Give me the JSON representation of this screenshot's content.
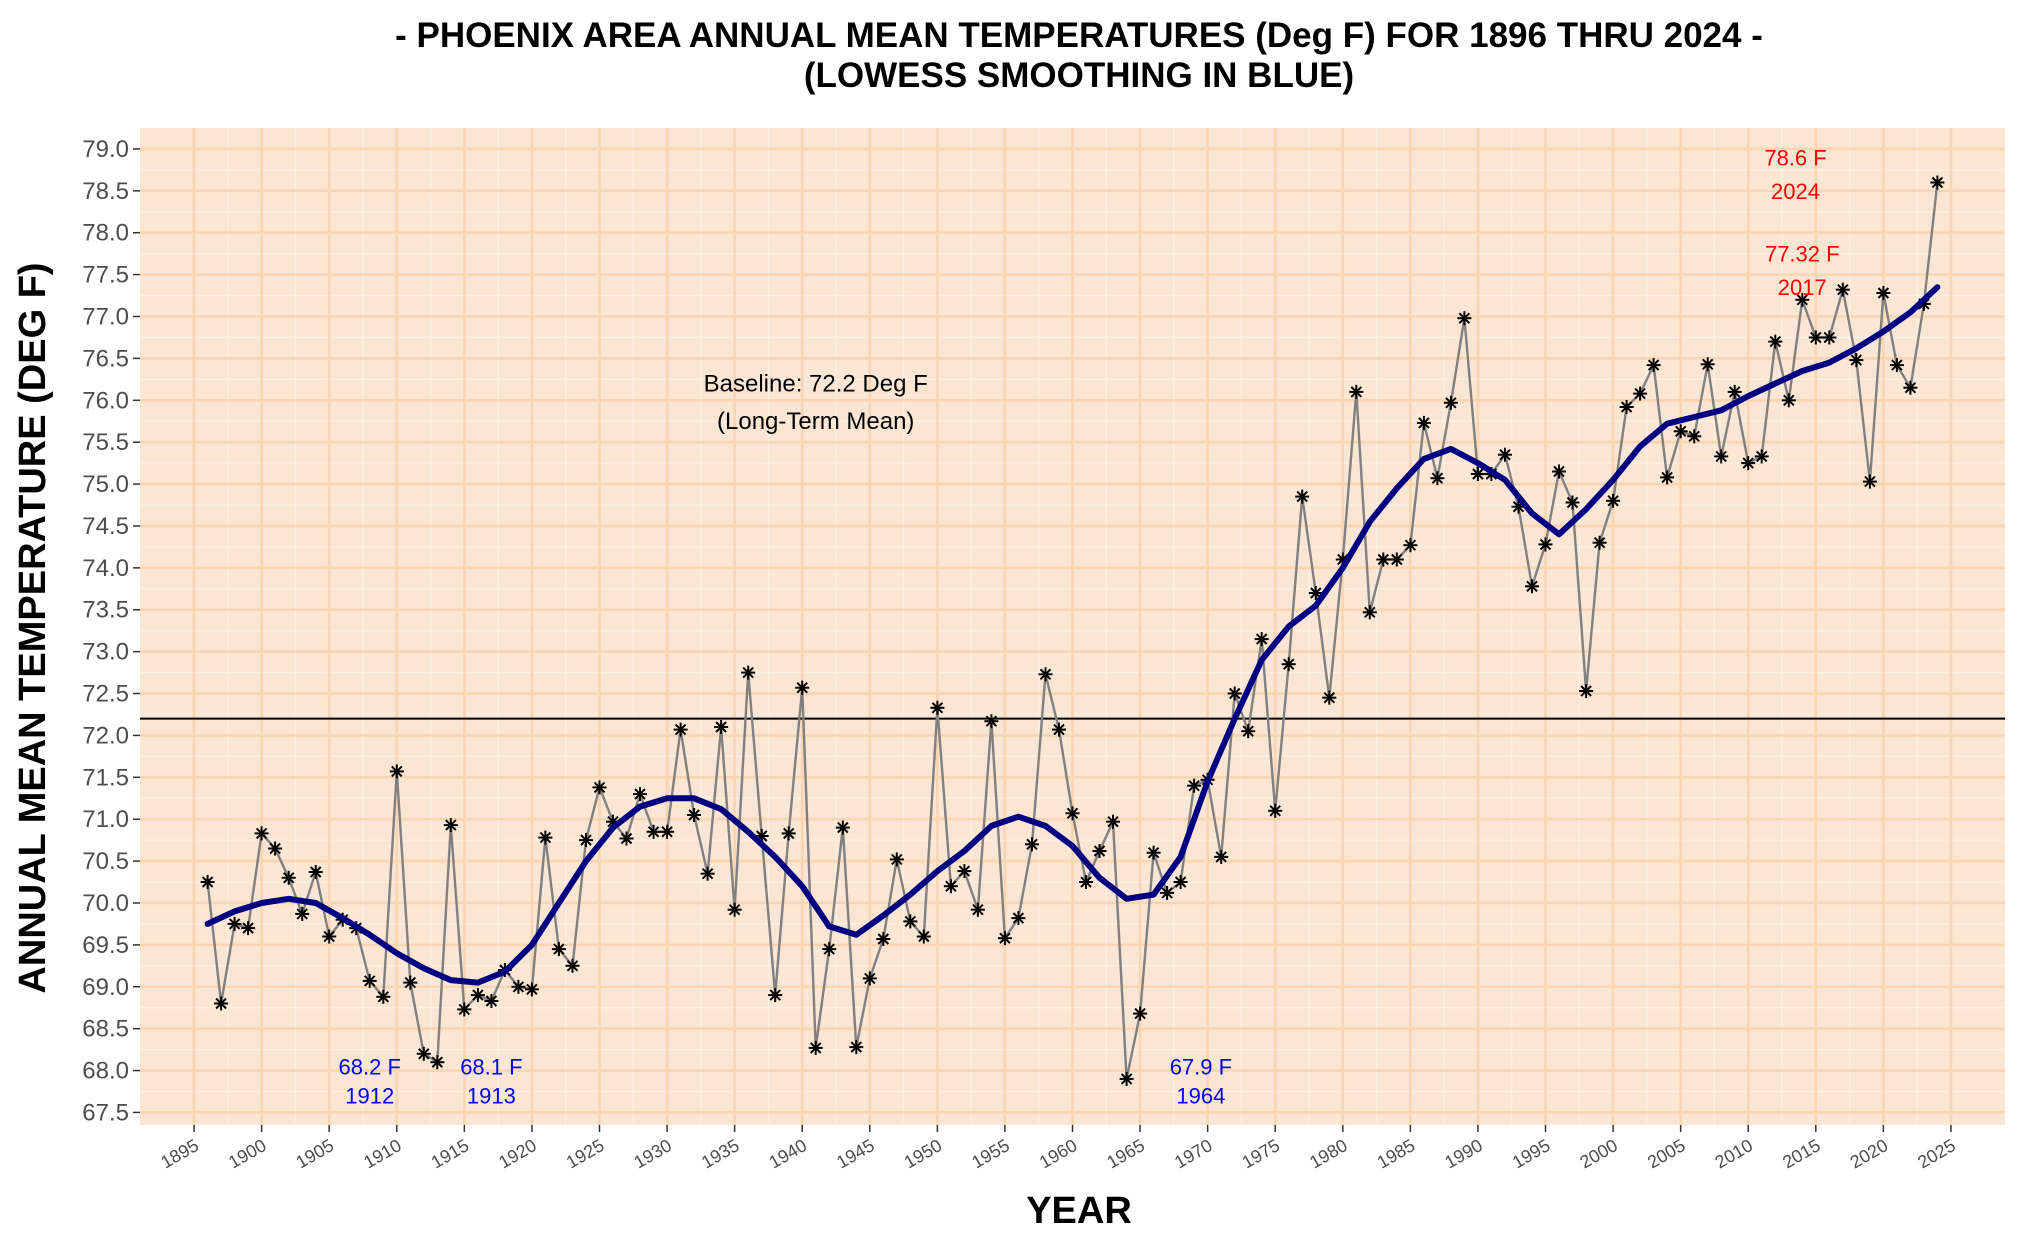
{
  "chart_data": {
    "type": "line",
    "title": "- PHOENIX AREA ANNUAL MEAN TEMPERATURES (Deg F) FOR 1896 THRU 2024 -",
    "subtitle": "(LOWESS SMOOTHING IN BLUE)",
    "xlabel": "YEAR",
    "ylabel": "ANNUAL MEAN TEMPERATURE (DEG F)",
    "xlim": [
      1891,
      2029
    ],
    "ylim": [
      67.35,
      79.25
    ],
    "x_ticks": [
      1895,
      1900,
      1905,
      1910,
      1915,
      1920,
      1925,
      1930,
      1935,
      1940,
      1945,
      1950,
      1955,
      1960,
      1965,
      1970,
      1975,
      1980,
      1985,
      1990,
      1995,
      2000,
      2005,
      2010,
      2015,
      2020,
      2025
    ],
    "y_ticks": [
      "67.5",
      "68.0",
      "68.5",
      "69.0",
      "69.5",
      "70.0",
      "70.5",
      "71.0",
      "71.5",
      "72.0",
      "72.5",
      "73.0",
      "73.5",
      "74.0",
      "74.5",
      "75.0",
      "75.5",
      "76.0",
      "76.5",
      "77.0",
      "77.5",
      "78.0",
      "78.5",
      "79.0"
    ],
    "grid": true,
    "colors": {
      "panel_background": "#fbe5d3",
      "grid_major": "#f9d5b2",
      "grid_minor": "#fdf0e4",
      "raw_line": "#808080",
      "marker": "#000000",
      "smooth_line": "#000080",
      "baseline": "#000000",
      "annotation_high": "#ff0000",
      "annotation_low": "#0000ff"
    },
    "baseline": {
      "value": 72.2,
      "label_line1": "Baseline: 72.2 Deg F",
      "label_line2": "(Long-Term Mean)"
    },
    "series": [
      {
        "marker": "asterisk",
        "x": [
          1896,
          1897,
          1898,
          1899,
          1900,
          1901,
          1902,
          1903,
          1904,
          1905,
          1906,
          1907,
          1908,
          1909,
          1910,
          1911,
          1912,
          1913,
          1914,
          1915,
          1916,
          1917,
          1918,
          1919,
          1920,
          1921,
          1922,
          1923,
          1924,
          1925,
          1926,
          1927,
          1928,
          1929,
          1930,
          1931,
          1932,
          1933,
          1934,
          1935,
          1936,
          1937,
          1938,
          1939,
          1940,
          1941,
          1942,
          1943,
          1944,
          1945,
          1946,
          1947,
          1948,
          1949,
          1950,
          1951,
          1952,
          1953,
          1954,
          1955,
          1956,
          1957,
          1958,
          1959,
          1960,
          1961,
          1962,
          1963,
          1964,
          1965,
          1966,
          1967,
          1968,
          1969,
          1970,
          1971,
          1972,
          1973,
          1974,
          1975,
          1976,
          1977,
          1978,
          1979,
          1980,
          1981,
          1982,
          1983,
          1984,
          1985,
          1986,
          1987,
          1988,
          1989,
          1990,
          1991,
          1992,
          1993,
          1994,
          1995,
          1996,
          1997,
          1998,
          1999,
          2000,
          2001,
          2002,
          2003,
          2004,
          2005,
          2006,
          2007,
          2008,
          2009,
          2010,
          2011,
          2012,
          2013,
          2014,
          2015,
          2016,
          2017,
          2018,
          2019,
          2020,
          2021,
          2022,
          2023,
          2024
        ],
        "values": [
          70.25,
          68.8,
          69.75,
          69.7,
          70.83,
          70.65,
          70.3,
          69.87,
          70.37,
          69.6,
          69.8,
          69.7,
          69.07,
          68.88,
          71.57,
          69.05,
          68.2,
          68.1,
          70.93,
          68.73,
          68.9,
          68.83,
          69.2,
          69.0,
          68.97,
          70.78,
          69.45,
          69.25,
          70.75,
          71.38,
          70.97,
          70.77,
          71.3,
          70.85,
          70.85,
          72.07,
          71.05,
          70.35,
          72.1,
          69.92,
          72.75,
          70.8,
          68.9,
          70.83,
          72.57,
          68.27,
          69.45,
          70.9,
          68.28,
          69.1,
          69.57,
          70.52,
          69.78,
          69.6,
          72.33,
          70.2,
          70.38,
          69.92,
          72.17,
          69.58,
          69.82,
          70.7,
          72.73,
          72.07,
          71.07,
          70.25,
          70.62,
          70.97,
          67.9,
          68.68,
          70.6,
          70.12,
          70.25,
          71.4,
          71.47,
          70.55,
          72.5,
          72.05,
          73.15,
          71.1,
          72.85,
          74.85,
          73.7,
          72.45,
          74.1,
          76.1,
          73.47,
          74.1,
          74.1,
          74.27,
          75.73,
          75.07,
          75.97,
          76.98,
          75.12,
          75.12,
          75.35,
          74.73,
          73.78,
          74.28,
          75.15,
          74.78,
          72.53,
          74.3,
          74.8,
          75.92,
          76.08,
          76.42,
          75.08,
          75.63,
          75.57,
          76.43,
          75.33,
          76.1,
          75.25,
          75.33,
          76.7,
          76.0,
          77.2,
          76.75,
          76.75,
          77.32,
          76.48,
          75.03,
          77.28,
          76.42,
          76.15,
          77.15,
          78.6
        ]
      },
      {
        "x": [
          1896,
          1898,
          1900,
          1902,
          1904,
          1906,
          1908,
          1910,
          1912,
          1914,
          1916,
          1918,
          1920,
          1922,
          1924,
          1926,
          1928,
          1930,
          1932,
          1934,
          1936,
          1938,
          1940,
          1942,
          1944,
          1946,
          1948,
          1950,
          1952,
          1954,
          1956,
          1958,
          1960,
          1962,
          1964,
          1966,
          1968,
          1970,
          1972,
          1974,
          1976,
          1978,
          1980,
          1982,
          1984,
          1986,
          1988,
          1990,
          1992,
          1994,
          1996,
          1998,
          2000,
          2002,
          2004,
          2006,
          2008,
          2010,
          2012,
          2014,
          2016,
          2018,
          2020,
          2022,
          2024
        ],
        "values": [
          69.75,
          69.9,
          70.0,
          70.05,
          70.0,
          69.82,
          69.62,
          69.4,
          69.22,
          69.08,
          69.05,
          69.18,
          69.5,
          70.0,
          70.5,
          70.9,
          71.15,
          71.25,
          71.25,
          71.12,
          70.85,
          70.55,
          70.2,
          69.72,
          69.62,
          69.85,
          70.1,
          70.38,
          70.62,
          70.92,
          71.03,
          70.92,
          70.68,
          70.3,
          70.05,
          70.1,
          70.55,
          71.45,
          72.2,
          72.9,
          73.3,
          73.55,
          74.0,
          74.55,
          74.95,
          75.3,
          75.42,
          75.25,
          75.05,
          74.65,
          74.4,
          74.7,
          75.05,
          75.45,
          75.72,
          75.8,
          75.88,
          76.05,
          76.2,
          76.35,
          76.45,
          76.62,
          76.82,
          77.05,
          77.35
        ]
      }
    ],
    "annotations": [
      {
        "text": "78.6 F",
        "year": "2024",
        "x": 2024,
        "y": 78.6,
        "color": "#ff0000"
      },
      {
        "text": "77.32 F",
        "year": "2017",
        "x": 2017,
        "y": 77.32,
        "color": "#ff0000"
      },
      {
        "text": "68.2 F",
        "year": "1912",
        "x": 1912,
        "y": 68.2,
        "color": "#0000ff"
      },
      {
        "text": "68.1 F",
        "year": "1913",
        "x": 1913,
        "y": 68.1,
        "color": "#0000ff"
      },
      {
        "text": "67.9 F",
        "year": "1964",
        "x": 1964,
        "y": 67.9,
        "color": "#0000ff"
      }
    ]
  }
}
